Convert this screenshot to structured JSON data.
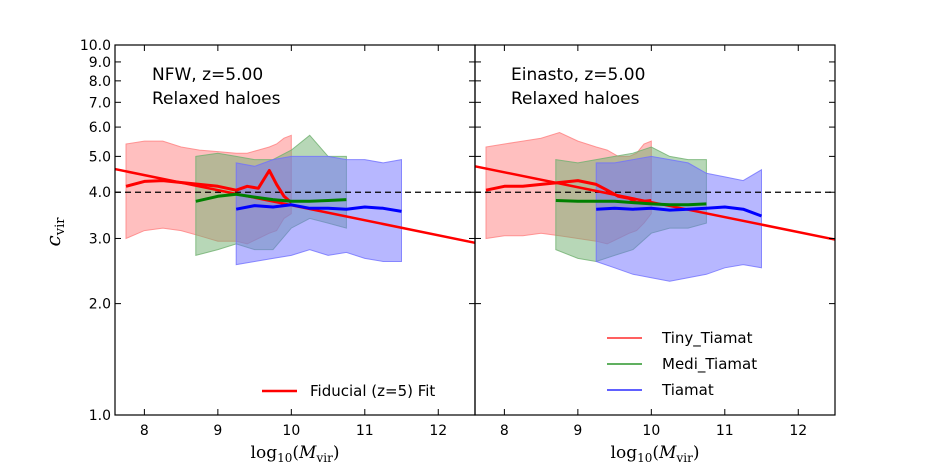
{
  "chart_data": [
    {
      "type": "line",
      "panel": "left",
      "annotation": [
        "NFW, z=5.00",
        "Relaxed haloes"
      ],
      "xlabel": "log10(Mvir)",
      "ylabel": "c_vir",
      "xlim": [
        7.6,
        12.5
      ],
      "ylim": [
        1.0,
        10.0
      ],
      "yscale": "log",
      "xticks": [
        "8",
        "9",
        "10",
        "11",
        "12"
      ],
      "yticks": [
        "1.0",
        "2.0",
        "3.0",
        "4.0",
        "5.0",
        "6.0",
        "7.0",
        "8.0",
        "9.0",
        "10.0"
      ],
      "reference_line_y": 4.0,
      "fit_line": {
        "name": "Fiducial (z=5) Fit",
        "x": [
          7.6,
          12.5
        ],
        "y": [
          4.62,
          2.92
        ]
      },
      "legend": {
        "placement": "lower-right",
        "entries": [
          "Fiducial (z=5) Fit"
        ]
      },
      "series": [
        {
          "name": "Tiny_Tiamat",
          "x": [
            7.75,
            8.0,
            8.25,
            8.5,
            8.75,
            9.0,
            9.25,
            9.4,
            9.55,
            9.7,
            9.8,
            9.9,
            10.0
          ],
          "median": [
            4.15,
            4.28,
            4.3,
            4.25,
            4.2,
            4.15,
            4.05,
            4.15,
            4.1,
            4.58,
            4.2,
            3.9,
            3.75
          ],
          "upper": [
            5.4,
            5.5,
            5.5,
            5.3,
            5.2,
            5.15,
            5.1,
            5.1,
            5.2,
            5.3,
            5.4,
            5.6,
            5.7
          ],
          "lower": [
            3.0,
            3.15,
            3.2,
            3.15,
            3.05,
            2.95,
            2.95,
            2.9,
            3.0,
            3.1,
            3.15,
            3.4,
            3.5
          ]
        },
        {
          "name": "Medi_Tiamat",
          "x": [
            8.7,
            9.0,
            9.25,
            9.5,
            9.75,
            10.0,
            10.25,
            10.5,
            10.75
          ],
          "median": [
            3.78,
            3.9,
            3.95,
            3.88,
            3.82,
            3.78,
            3.78,
            3.8,
            3.82
          ],
          "upper": [
            5.0,
            5.1,
            5.0,
            4.9,
            4.9,
            5.2,
            5.7,
            5.0,
            5.0
          ],
          "lower": [
            2.7,
            2.8,
            2.9,
            2.8,
            2.8,
            3.2,
            3.4,
            3.3,
            3.2
          ]
        },
        {
          "name": "Tiamat",
          "x": [
            9.25,
            9.5,
            9.75,
            10.0,
            10.25,
            10.5,
            10.75,
            11.0,
            11.25,
            11.5
          ],
          "median": [
            3.6,
            3.68,
            3.65,
            3.7,
            3.62,
            3.62,
            3.6,
            3.65,
            3.62,
            3.55
          ],
          "upper": [
            4.8,
            4.7,
            4.9,
            5.0,
            5.0,
            5.0,
            4.9,
            4.9,
            4.8,
            4.9
          ],
          "lower": [
            2.55,
            2.6,
            2.65,
            2.7,
            2.8,
            2.7,
            2.75,
            2.65,
            2.6,
            2.6
          ]
        }
      ]
    },
    {
      "type": "line",
      "panel": "right",
      "annotation": [
        "Einasto, z=5.00",
        "Relaxed haloes"
      ],
      "xlabel": "log10(Mvir)",
      "ylabel": "",
      "xlim": [
        7.6,
        12.5
      ],
      "ylim": [
        1.0,
        10.0
      ],
      "yscale": "log",
      "xticks": [
        "8",
        "9",
        "10",
        "11",
        "12"
      ],
      "reference_line_y": 4.0,
      "fit_line": {
        "x": [
          7.6,
          12.5
        ],
        "y": [
          4.7,
          2.98
        ]
      },
      "legend": {
        "placement": "lower-right",
        "entries": [
          "Tiny_Tiamat",
          "Medi_Tiamat",
          "Tiamat"
        ]
      },
      "series": [
        {
          "name": "Tiny_Tiamat",
          "x": [
            7.75,
            8.0,
            8.25,
            8.5,
            8.75,
            9.0,
            9.25,
            9.4,
            9.55,
            9.7,
            9.8,
            9.9,
            10.0
          ],
          "median": [
            4.05,
            4.15,
            4.15,
            4.2,
            4.25,
            4.3,
            4.2,
            4.05,
            3.9,
            3.85,
            3.75,
            3.78,
            3.8
          ],
          "upper": [
            5.3,
            5.4,
            5.5,
            5.6,
            5.8,
            5.5,
            5.3,
            5.2,
            5.0,
            5.0,
            5.1,
            5.4,
            5.5
          ],
          "lower": [
            3.0,
            3.05,
            3.05,
            3.1,
            3.05,
            3.0,
            2.95,
            2.9,
            3.0,
            3.1,
            3.15,
            3.3,
            3.5
          ]
        },
        {
          "name": "Medi_Tiamat",
          "x": [
            8.7,
            9.0,
            9.25,
            9.5,
            9.75,
            10.0,
            10.25,
            10.5,
            10.75
          ],
          "median": [
            3.8,
            3.78,
            3.78,
            3.78,
            3.75,
            3.72,
            3.7,
            3.7,
            3.72
          ],
          "upper": [
            4.9,
            4.8,
            4.9,
            5.0,
            5.1,
            5.3,
            5.0,
            4.9,
            4.9
          ],
          "lower": [
            2.8,
            2.65,
            2.6,
            2.7,
            2.8,
            3.1,
            3.2,
            3.2,
            3.3
          ]
        },
        {
          "name": "Tiamat",
          "x": [
            9.25,
            9.5,
            9.75,
            10.0,
            10.25,
            10.5,
            10.75,
            11.0,
            11.25,
            11.5
          ],
          "median": [
            3.6,
            3.62,
            3.6,
            3.62,
            3.58,
            3.6,
            3.62,
            3.65,
            3.6,
            3.45
          ],
          "upper": [
            4.8,
            4.8,
            4.9,
            5.0,
            4.9,
            4.8,
            4.5,
            4.4,
            4.3,
            4.6
          ],
          "lower": [
            2.6,
            2.5,
            2.4,
            2.35,
            2.3,
            2.35,
            2.4,
            2.5,
            2.55,
            2.5
          ]
        }
      ]
    }
  ],
  "colors": {
    "Tiny_Tiamat": "#ff0000",
    "Medi_Tiamat": "#008000",
    "Tiamat": "#0000ff",
    "Tiny_Tiamat_fill": "#ff8080",
    "Medi_Tiamat_fill": "#6fb06f",
    "Tiamat_fill": "#7070ff",
    "fit": "#ff0000",
    "reference": "#000000"
  }
}
